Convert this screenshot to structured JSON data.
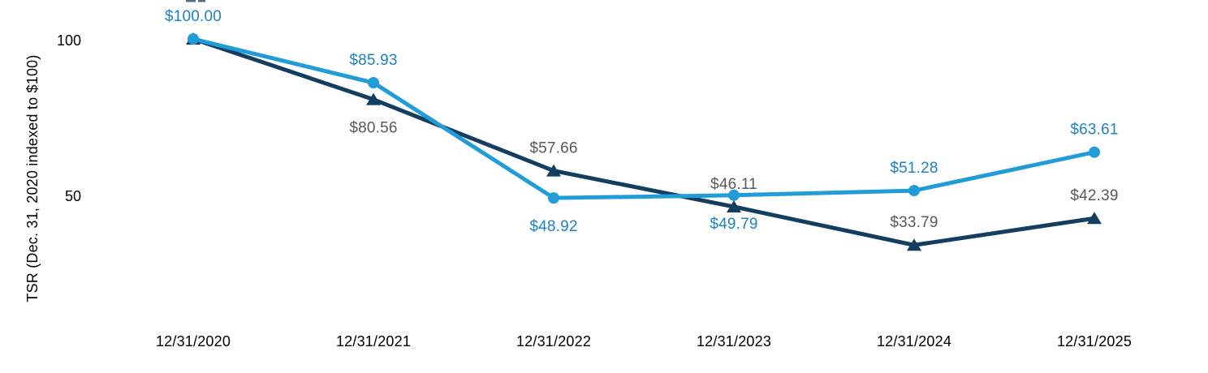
{
  "colors": {
    "blue_line": "#209CD8",
    "blue_label": "#1C82C5",
    "navy_line": "#133E60",
    "gray_label": "#58595B",
    "axis_text": "#000000",
    "background": "#FFFFFF"
  },
  "chart_data": {
    "type": "line",
    "title": "",
    "xlabel": "",
    "ylabel": "TSR (Dec. 31, 2020 indexed to $100)",
    "categories": [
      "12/31/2020",
      "12/31/2021",
      "12/31/2022",
      "12/31/2023",
      "12/31/2024",
      "12/31/2025"
    ],
    "y_ticks": [
      {
        "value": 100,
        "label": "100"
      },
      {
        "value": 50,
        "label": "50"
      }
    ],
    "ylim": [
      0,
      110
    ],
    "grid": false,
    "legend": "none",
    "series": [
      {
        "name": "navy-triangle-series",
        "marker": "triangle",
        "color_key": "navy_line",
        "label_color_key": "gray_label",
        "values": [
          100.0,
          80.56,
          57.66,
          46.11,
          33.79,
          42.39
        ],
        "point_labels": [
          "",
          "$80.56",
          "$57.66",
          "$46.11",
          "$33.79",
          "$42.39"
        ],
        "label_placement": [
          "none",
          "below",
          "above",
          "above",
          "above",
          "above"
        ]
      },
      {
        "name": "blue-circle-series",
        "marker": "circle",
        "color_key": "blue_line",
        "label_color_key": "blue_label",
        "values": [
          100.0,
          85.93,
          48.92,
          49.79,
          51.28,
          63.61
        ],
        "point_labels": [
          "$100.00",
          "$85.93",
          "$48.92",
          "$49.79",
          "$51.28",
          "$63.61"
        ],
        "label_placement": [
          "above",
          "above",
          "below",
          "below",
          "above",
          "above"
        ]
      }
    ]
  }
}
